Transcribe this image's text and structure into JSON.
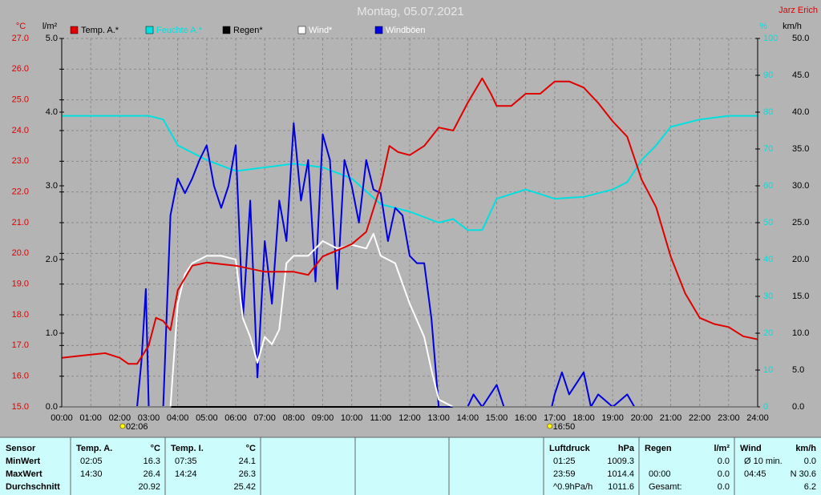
{
  "chart_data": {
    "type": "line",
    "title": "Montag, 05.07.2021",
    "author": "Jarz Erich",
    "xlim": [
      0,
      24
    ],
    "xticks": [
      {
        "value": 0,
        "label": "00:00"
      },
      {
        "value": 1,
        "label": "01:00"
      },
      {
        "value": 2,
        "label": "02:00"
      },
      {
        "value": 3,
        "label": "03:00"
      },
      {
        "value": 4,
        "label": "04:00"
      },
      {
        "value": 5,
        "label": "05:00"
      },
      {
        "value": 6,
        "label": "06:00"
      },
      {
        "value": 7,
        "label": "07:00"
      },
      {
        "value": 8,
        "label": "08:00"
      },
      {
        "value": 9,
        "label": "09:00"
      },
      {
        "value": 10,
        "label": "10:00"
      },
      {
        "value": 11,
        "label": "11:00"
      },
      {
        "value": 12,
        "label": "12:00"
      },
      {
        "value": 13,
        "label": "13:00"
      },
      {
        "value": 14,
        "label": "14:00"
      },
      {
        "value": 15,
        "label": "15:00"
      },
      {
        "value": 16,
        "label": "16:00"
      },
      {
        "value": 17,
        "label": "17:00"
      },
      {
        "value": 18,
        "label": "18:00"
      },
      {
        "value": 19,
        "label": "19:00"
      },
      {
        "value": 20,
        "label": "20:00"
      },
      {
        "value": 21,
        "label": "21:00"
      },
      {
        "value": 22,
        "label": "22:00"
      },
      {
        "value": 23,
        "label": "23:00"
      },
      {
        "value": 24,
        "label": "24:00"
      }
    ],
    "grid": true,
    "axes": [
      {
        "unit": "°C",
        "side": "left",
        "color": "#e00000",
        "lim": [
          15,
          27
        ],
        "ticks": [
          {
            "value": 15,
            "label": "15.0"
          },
          {
            "value": 16,
            "label": "16.0"
          },
          {
            "value": 17,
            "label": "17.0"
          },
          {
            "value": 18,
            "label": "18.0"
          },
          {
            "value": 19,
            "label": "19.0"
          },
          {
            "value": 20,
            "label": "20.0"
          },
          {
            "value": 21,
            "label": "21.0"
          },
          {
            "value": 22,
            "label": "22.0"
          },
          {
            "value": 23,
            "label": "23.0"
          },
          {
            "value": 24,
            "label": "24.0"
          },
          {
            "value": 25,
            "label": "25.0"
          },
          {
            "value": 26,
            "label": "26.0"
          },
          {
            "value": 27,
            "label": "27.0"
          }
        ]
      },
      {
        "unit": "l/m²",
        "side": "left",
        "color": "#000000",
        "lim": [
          0,
          5
        ],
        "ticks": [
          {
            "value": 0,
            "label": "0.0"
          },
          {
            "value": 1,
            "label": "1.0"
          },
          {
            "value": 2,
            "label": "2.0"
          },
          {
            "value": 3,
            "label": "3.0"
          },
          {
            "value": 4,
            "label": "4.0"
          },
          {
            "value": 5,
            "label": "5.0"
          }
        ]
      },
      {
        "unit": "%",
        "side": "right",
        "color": "#00e0e0",
        "lim": [
          0,
          100
        ],
        "ticks": [
          0,
          10,
          20,
          30,
          40,
          50,
          60,
          70,
          80,
          90,
          100
        ]
      },
      {
        "unit": "km/h",
        "side": "right",
        "color": "#000000",
        "lim": [
          0,
          50
        ],
        "ticks": [
          {
            "value": 0,
            "label": "0.0"
          },
          {
            "value": 5,
            "label": "5.0"
          },
          {
            "value": 10,
            "label": "10.0"
          },
          {
            "value": 15,
            "label": "15.0"
          },
          {
            "value": 20,
            "label": "20.0"
          },
          {
            "value": 25,
            "label": "25.0"
          },
          {
            "value": 30,
            "label": "30.0"
          },
          {
            "value": 35,
            "label": "35.0"
          },
          {
            "value": 40,
            "label": "40.0"
          },
          {
            "value": 45,
            "label": "45.0"
          },
          {
            "value": 50,
            "label": "50.0"
          }
        ]
      }
    ],
    "series": [
      {
        "name": "Temp. A.*",
        "color": "#e00000",
        "axis": 0,
        "x": [
          0,
          0.5,
          1,
          1.5,
          2,
          2.3,
          2.6,
          3,
          3.25,
          3.5,
          3.75,
          4,
          4.5,
          5,
          6,
          7,
          8,
          8.5,
          9,
          10,
          10.5,
          11,
          11.3,
          11.6,
          12,
          12.5,
          13,
          13.5,
          14,
          14.5,
          14.8,
          15,
          15.5,
          16,
          16.5,
          17,
          17.5,
          18,
          18.5,
          19,
          19.5,
          20,
          20.5,
          21,
          21.5,
          22,
          22.5,
          23,
          23.5,
          24
        ],
        "values": [
          16.6,
          16.65,
          16.7,
          16.75,
          16.6,
          16.4,
          16.4,
          17.0,
          17.9,
          17.8,
          17.5,
          18.8,
          19.6,
          19.7,
          19.6,
          19.4,
          19.4,
          19.3,
          19.9,
          20.3,
          20.7,
          22.2,
          23.5,
          23.3,
          23.2,
          23.5,
          24.1,
          24.0,
          24.9,
          25.7,
          25.2,
          24.8,
          24.8,
          25.2,
          25.2,
          25.6,
          25.6,
          25.4,
          24.9,
          24.3,
          23.8,
          22.4,
          21.5,
          19.9,
          18.7,
          17.9,
          17.7,
          17.6,
          17.3,
          17.2
        ]
      },
      {
        "name": "Feuchte A.*",
        "color": "#00e0e0",
        "axis": 2,
        "x": [
          0,
          1,
          2,
          3,
          3.5,
          4,
          5,
          6,
          7,
          8,
          9,
          10,
          11,
          12,
          13,
          13.5,
          14,
          14.5,
          15,
          16,
          17,
          18,
          19,
          19.5,
          20,
          20.5,
          21,
          22,
          23,
          24
        ],
        "values": [
          79,
          79,
          79,
          79,
          78,
          71,
          67,
          64,
          65,
          66,
          65,
          62,
          55,
          53,
          50,
          51,
          48,
          48,
          56.5,
          59,
          56.5,
          57,
          59,
          61,
          67,
          71,
          76,
          78,
          79,
          79
        ]
      },
      {
        "name": "Regen*",
        "color": "#000000",
        "axis": 1,
        "x": [
          0,
          24
        ],
        "values": [
          0,
          0
        ]
      },
      {
        "name": "Wind*",
        "color": "#ffffff",
        "axis": 3,
        "x": [
          0,
          3.75,
          4,
          4.25,
          4.5,
          5,
          5.5,
          6,
          6.25,
          6.5,
          6.75,
          7,
          7.25,
          7.5,
          7.75,
          8,
          8.5,
          9,
          9.5,
          10,
          10.5,
          10.75,
          11,
          11.5,
          12,
          12.5,
          12.75,
          13,
          13.5,
          24
        ],
        "values": [
          0,
          0,
          14,
          18,
          19.5,
          20.5,
          20.5,
          20,
          12,
          9.5,
          6,
          9.5,
          8.5,
          10.5,
          19.5,
          20.5,
          20.5,
          22.5,
          21.5,
          22,
          21.5,
          23.5,
          20.5,
          19.5,
          14,
          9.5,
          5,
          1,
          0,
          0
        ]
      },
      {
        "name": "Windböen",
        "color": "#0000e0",
        "axis": 3,
        "x": [
          0,
          2.6,
          2.75,
          2.9,
          3.0,
          3.5,
          3.75,
          4,
          4.25,
          4.5,
          4.75,
          5,
          5.25,
          5.5,
          5.75,
          6,
          6.25,
          6.5,
          6.75,
          7,
          7.25,
          7.5,
          7.75,
          8,
          8.25,
          8.5,
          8.75,
          9,
          9.25,
          9.5,
          9.75,
          10,
          10.25,
          10.5,
          10.75,
          11,
          11.25,
          11.5,
          11.75,
          12,
          12.25,
          12.5,
          12.75,
          13,
          14,
          14.2,
          14.5,
          15,
          15.25,
          16.9,
          17,
          17.25,
          17.5,
          18,
          18.25,
          18.5,
          19,
          19.5,
          19.75,
          24
        ],
        "values": [
          0,
          0,
          6.3,
          16,
          0,
          0,
          26,
          31,
          29,
          31,
          33.5,
          35.5,
          30,
          27,
          30,
          35.5,
          12,
          28,
          4,
          22.5,
          14,
          28,
          22.5,
          38.5,
          28,
          33.5,
          17,
          37,
          33.5,
          16,
          33.5,
          30,
          25,
          33.5,
          29.5,
          29,
          22.5,
          27,
          26,
          20.5,
          19.5,
          19.5,
          12,
          0,
          0,
          1.7,
          0,
          3,
          0,
          0,
          1.7,
          4.7,
          1.7,
          4.7,
          0,
          1.7,
          0,
          1.7,
          0,
          0
        ]
      }
    ],
    "annotations": [
      {
        "x": 2.1,
        "text": "02:06"
      },
      {
        "x": 16.83,
        "text": "16:50"
      }
    ]
  },
  "table": {
    "groups": [
      {
        "header": [
          "Sensor"
        ],
        "rows": [
          [
            "MinWert"
          ],
          [
            "MaxWert"
          ],
          [
            "Durchschnitt"
          ]
        ]
      },
      {
        "header": [
          "Temp. A.",
          "°C"
        ],
        "rows": [
          [
            "02:05",
            "16.3"
          ],
          [
            "14:30",
            "26.4"
          ],
          [
            null,
            "20.92"
          ]
        ]
      },
      {
        "header": [
          "Temp. I.",
          "°C"
        ],
        "rows": [
          [
            "07:35",
            "24.1"
          ],
          [
            "14:24",
            "26.3"
          ],
          [
            null,
            "25.42"
          ]
        ]
      },
      {
        "header": [
          "Luftdruck",
          "hPa"
        ],
        "rows": [
          [
            "01:25",
            "1009.3"
          ],
          [
            "23:59",
            "1014.4"
          ],
          [
            "^0.9hPa/h",
            "1011.6"
          ]
        ]
      },
      {
        "header": [
          "Regen",
          "l/m²"
        ],
        "rows": [
          [
            null,
            "0.0"
          ],
          [
            "00:00",
            "0.0"
          ],
          [
            "Gesamt:",
            "0.0"
          ]
        ]
      },
      {
        "header": [
          "Wind",
          "km/h"
        ],
        "rows": [
          [
            "Ø 10 min.",
            "0.0"
          ],
          [
            "04:45",
            "N 30.6"
          ],
          [
            null,
            "6.2"
          ]
        ]
      }
    ]
  }
}
